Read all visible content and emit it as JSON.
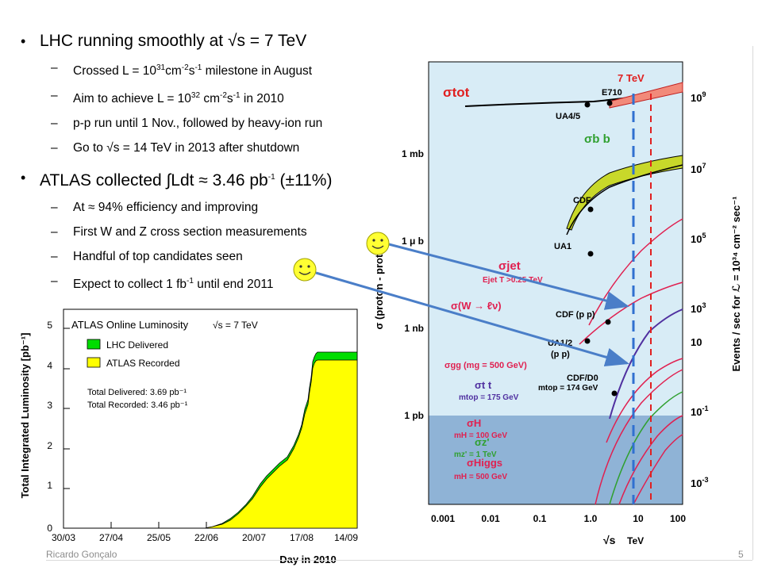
{
  "slide": {
    "bullets": [
      {
        "text": "LHC running smoothly at √s = 7 TeV",
        "sub": [
          {
            "pre": "Crossed L = 10",
            "sup1": "31",
            "mid": "cm",
            "sup2": "-2",
            "mid2": "s",
            "sup3": "-1",
            "post": " milestone in August"
          },
          {
            "pre": "Aim to achieve L = 10",
            "sup1": "32",
            "mid": " cm",
            "sup2": "-2",
            "mid2": "s",
            "sup3": "-1",
            "post": " in 2010"
          },
          {
            "text": "p-p run until 1 Nov., followed by heavy-ion run"
          },
          {
            "text": "Go to √s = 14 TeV in 2013 after shutdown"
          }
        ]
      },
      {
        "pre": "ATLAS collected ∫Ldt ≈ 3.46 pb",
        "sup": "-1",
        "post": " (±11%)",
        "sub": [
          {
            "text": "At ≈ 94% efficiency and improving"
          },
          {
            "text": "First W and Z cross section measurements"
          },
          {
            "text": "Handful of top candidates seen"
          },
          {
            "pre": "Expect to collect 1 fb",
            "sup1": "-1",
            "post": " until end 2011"
          }
        ]
      }
    ],
    "footer": {
      "author": "Ricardo Gonçalo",
      "page": "5"
    }
  },
  "lumi_plot": {
    "title": "ATLAS Online Luminosity",
    "energy": "√s = 7 TeV",
    "legend": [
      "LHC Delivered",
      "ATLAS Recorded"
    ],
    "colors": {
      "delivered": "#00dd00",
      "recorded": "#ffff00"
    },
    "total_delivered": "Total Delivered: 3.69 pb⁻¹",
    "total_recorded": "Total Recorded: 3.46 pb⁻¹",
    "ylabel": "Total Integrated Luminosity [pb⁻¹]",
    "xlabel": "Day in 2010",
    "xticks": [
      "30/03",
      "27/04",
      "25/05",
      "22/06",
      "20/07",
      "17/08",
      "14/09"
    ],
    "yticks": [
      "0",
      "1",
      "2",
      "3",
      "4",
      "5"
    ]
  },
  "xsec_plot": {
    "yleft_labels": [
      "1 mb",
      "1 μ b",
      "1 nb",
      "1 pb"
    ],
    "yleft_axis": "σ (proton - proton)",
    "yright_axis": "Events / sec for ℒ = 10³⁴ cm⁻² sec⁻¹",
    "xticks": [
      "0.001",
      "0.01",
      "0.1",
      "1.0",
      "10",
      "100"
    ],
    "xlabel_sym": "√s",
    "xlabel_unit": "TeV",
    "marker_7tev": "7 TeV",
    "labels": {
      "stot": "σtot",
      "e710": "E710",
      "ua45": "UA4/5",
      "sbb": "σb b",
      "cdf": "CDF",
      "ua1": "UA1",
      "sjet": "σjet",
      "ejet": "Ejet T >0.25 TeV",
      "sw": "σ(W → ℓν)",
      "cdfpp": "CDF (p p)",
      "ua12": "UA1/2",
      "ua12b": "(p p)",
      "sgg": "σgg (mg = 500 GeV)",
      "cdfd0": "CDF/D0",
      "mtop174": "mtop = 174 GeV",
      "stt": "σt t",
      "mtop175": "mtop = 175 GeV",
      "sh": "σH",
      "mh100": "mH = 100 GeV",
      "szp": "σz'",
      "mzp": "mz' = 1 TeV",
      "shiggs": "σHiggs",
      "mh500": "mH = 500 GeV"
    }
  }
}
